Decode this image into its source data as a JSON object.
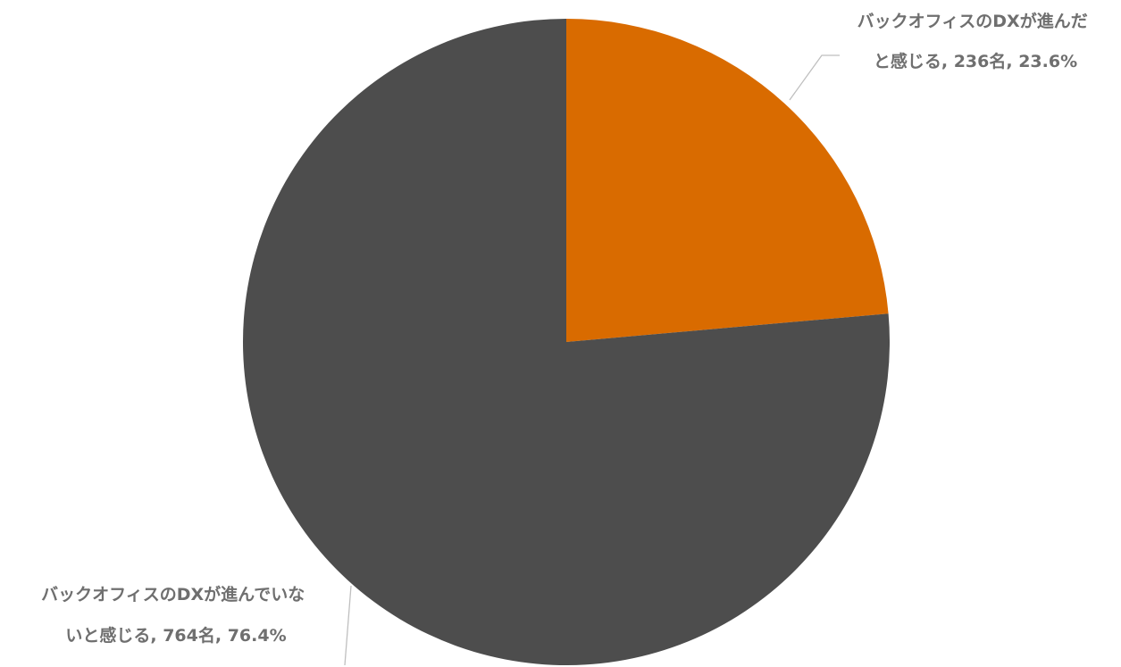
{
  "chart_data": {
    "type": "pie",
    "title": "",
    "slices": [
      {
        "label_lines": [
          "バックオフィスのDXが進んだ",
          "と感じる, 236名, 23.6%"
        ],
        "category": "バックオフィスのDXが進んだと感じる",
        "count": 236,
        "unit": "名",
        "percent": 23.6,
        "color": "#d96b00"
      },
      {
        "label_lines": [
          "バックオフィスのDXが進んでいな",
          "いと感じる, 764名, 76.4%"
        ],
        "category": "バックオフィスのDXが進んでいないと感じる",
        "count": 764,
        "unit": "名",
        "percent": 76.4,
        "color": "#4d4d4d"
      }
    ],
    "start_angle_deg": 0,
    "direction": "clockwise",
    "legend": "none",
    "leader_line_color": "#bfbfbf",
    "label_color": "#6f6f6f"
  }
}
